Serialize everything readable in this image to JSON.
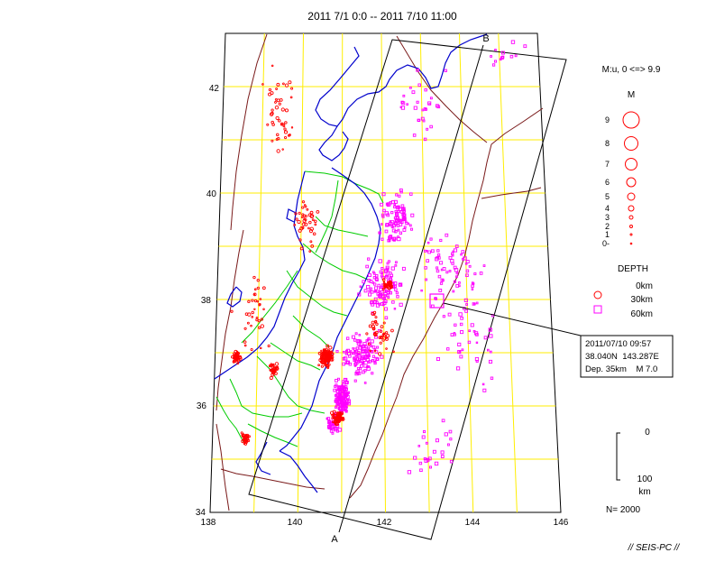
{
  "title": "2011 7/1 0:0 -- 2011 7/10 11:00",
  "axes": {
    "lon_ticks": [
      "138",
      "140",
      "142",
      "144",
      "146"
    ],
    "lat_ticks": [
      "34",
      "36",
      "38",
      "40",
      "42"
    ],
    "lon_range": [
      138,
      146
    ],
    "lat_range": [
      34,
      43
    ]
  },
  "section_labels": {
    "start": "A",
    "end": "B"
  },
  "magnitude_legend": {
    "header": "M:u, 0 <=> 9.9",
    "title": "M",
    "items": [
      "9",
      "8",
      "7",
      "6",
      "5",
      "4",
      "3",
      "2",
      "1",
      "0-"
    ],
    "values": [
      9,
      8,
      7,
      6,
      5,
      4,
      3,
      2,
      1,
      0
    ]
  },
  "depth_legend": {
    "title": "DEPTH",
    "items": [
      "0km",
      "30km",
      "60km"
    ],
    "colors": [
      "#ff0000",
      "#ff0000",
      "#ff00ff"
    ]
  },
  "callout": {
    "datetime": "2011/07/10 09:57",
    "location": "38.040N  143.287E",
    "depth_mag": "Dep. 35km    M 7.0",
    "lat": 38.04,
    "lon": 143.287,
    "depth_km": 35,
    "magnitude": 7.0
  },
  "scale_bar": {
    "top": "0",
    "bottom": "100",
    "unit": "km"
  },
  "count": "N= 2000",
  "watermark": "// SEIS-PC //",
  "colors": {
    "grid": "#ffee00",
    "coast": "#0000cc",
    "prefecture": "#00cc00",
    "plate": "#7a1a1a",
    "shallow": "#ff0000",
    "deep": "#ff00ff"
  }
}
